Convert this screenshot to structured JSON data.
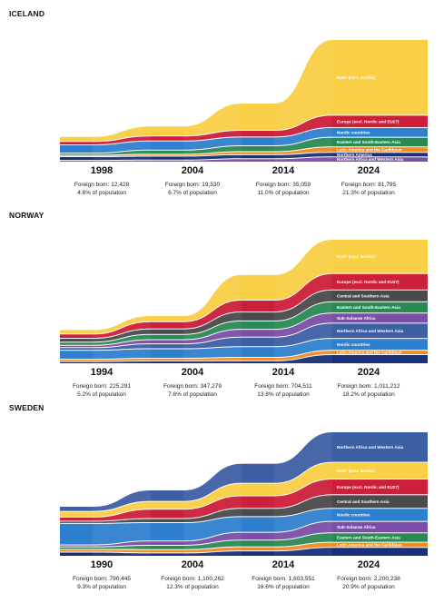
{
  "chart_data": [
    {
      "type": "sankey",
      "country": "ICELAND",
      "years": [
        {
          "year": "1998",
          "foreign_born_text": "Foreign born: 12,428",
          "share_text": "4.6% of population",
          "foreign_born": 12428,
          "share_pct": 4.6
        },
        {
          "year": "2004",
          "foreign_born_text": "Foreign born: 19,530",
          "share_text": "6.7% of population",
          "foreign_born": 19530,
          "share_pct": 6.7
        },
        {
          "year": "2014",
          "foreign_born_text": "Foreign born: 35,059",
          "share_text": "11.0% of population",
          "foreign_born": 35059,
          "share_pct": 11.0
        },
        {
          "year": "2024",
          "foreign_born_text": "Foreign born: 81,795",
          "share_text": "21.3% of population",
          "foreign_born": 81795,
          "share_pct": 21.3
        }
      ],
      "series": [
        {
          "name": "EU27 (excl. Nordic)",
          "color": "#f9cf45",
          "values": [
            2500,
            5500,
            16000,
            45500
          ]
        },
        {
          "name": "Europe (excl. Nordic and EU27)",
          "color": "#cc1f3a",
          "values": [
            1500,
            2500,
            3500,
            7000
          ]
        },
        {
          "name": "Nordic countries",
          "color": "#2f7fcf",
          "values": [
            4500,
            5000,
            4800,
            5300
          ]
        },
        {
          "name": "Eastern and South-Eastern Asia",
          "color": "#2a8a55",
          "values": [
            700,
            2000,
            3000,
            5300
          ]
        },
        {
          "name": "Latin America and the Caribbean",
          "color": "#f28a22",
          "values": [
            300,
            600,
            1300,
            2800
          ]
        },
        {
          "name": "Northern America",
          "color": "#182f7a",
          "values": [
            1700,
            1800,
            1900,
            2200
          ]
        },
        {
          "name": "Northern Africa and Western Asia",
          "color": "#7b4fa8",
          "values": [
            500,
            700,
            1500,
            2600
          ]
        }
      ]
    },
    {
      "type": "sankey",
      "country": "NORWAY",
      "years": [
        {
          "year": "1994",
          "foreign_born_text": "Foreign born: 225,291",
          "share_text": "5.2% of population",
          "foreign_born": 225291,
          "share_pct": 5.2
        },
        {
          "year": "2004",
          "foreign_born_text": "Foreign born: 347,279",
          "share_text": "7.6% of population",
          "foreign_born": 347279,
          "share_pct": 7.6
        },
        {
          "year": "2014",
          "foreign_born_text": "Foreign born: 704,511",
          "share_text": "13.8% of population",
          "foreign_born": 704511,
          "share_pct": 13.8
        },
        {
          "year": "2024",
          "foreign_born_text": "Foreign born: 1,011,212",
          "share_text": "18.2% of population",
          "foreign_born": 1011212,
          "share_pct": 18.2
        }
      ],
      "series": [
        {
          "name": "EU27 (excl. Nordic)",
          "color": "#f9cf45",
          "values": [
            30000,
            45000,
            215000,
            290000
          ]
        },
        {
          "name": "Europe (excl. Nordic and EU27)",
          "color": "#cc1f3a",
          "values": [
            30000,
            55000,
            95000,
            135000
          ]
        },
        {
          "name": "Central and Southern Asia",
          "color": "#4a4a4a",
          "values": [
            25000,
            40000,
            70000,
            95000
          ]
        },
        {
          "name": "Eastern and South-Eastern Asia",
          "color": "#2a8a55",
          "values": [
            20000,
            38000,
            65000,
            90000
          ]
        },
        {
          "name": "Sub-Saharan Africa",
          "color": "#7b4fa8",
          "values": [
            12000,
            28000,
            60000,
            80000
          ]
        },
        {
          "name": "Northern Africa and Western Asia",
          "color": "#3d5fa3",
          "values": [
            15000,
            35000,
            75000,
            125000
          ]
        },
        {
          "name": "Nordic countries",
          "color": "#2f7fcf",
          "values": [
            70000,
            75000,
            85000,
            95000
          ]
        },
        {
          "name": "Latin America and the Caribbean",
          "color": "#f28a22",
          "values": [
            12000,
            15000,
            22000,
            30000
          ]
        },
        {
          "name": "",
          "color": "#182f7a",
          "values": [
            11291,
            16279,
            17511,
            71212
          ]
        }
      ]
    },
    {
      "type": "sankey",
      "country": "SWEDEN",
      "years": [
        {
          "year": "1990",
          "foreign_born_text": "Foreign born: 790,445",
          "share_text": "9.3% of population",
          "foreign_born": 790445,
          "share_pct": 9.3
        },
        {
          "year": "2004",
          "foreign_born_text": "Foreign born: 1,100,262",
          "share_text": "12.3% of population",
          "foreign_born": 1100262,
          "share_pct": 12.3
        },
        {
          "year": "2014",
          "foreign_born_text": "Foreign born: 1,603,551",
          "share_text": "16.6% of population",
          "foreign_born": 1603551,
          "share_pct": 16.6
        },
        {
          "year": "2024",
          "foreign_born_text": "Foreign born: 2,200,238",
          "share_text": "20.9% of population",
          "foreign_born": 2200238,
          "share_pct": 20.9
        }
      ],
      "series": [
        {
          "name": "Northern Africa and Western Asia",
          "color": "#3d5fa3",
          "values": [
            80000,
            200000,
            360000,
            560000
          ]
        },
        {
          "name": "EU27 (excl. Nordic)",
          "color": "#f9cf45",
          "values": [
            90000,
            130000,
            220000,
            300000
          ]
        },
        {
          "name": "Europe (excl. Nordic and EU27)",
          "color": "#cc1f3a",
          "values": [
            60000,
            160000,
            220000,
            280000
          ]
        },
        {
          "name": "Central and Southern Asia",
          "color": "#4a4a4a",
          "values": [
            25000,
            60000,
            140000,
            240000
          ]
        },
        {
          "name": "Nordic countries",
          "color": "#2f7fcf",
          "values": [
            390000,
            330000,
            280000,
            230000
          ]
        },
        {
          "name": "Sub-Saharan Africa",
          "color": "#7b4fa8",
          "values": [
            20000,
            65000,
            130000,
            200000
          ]
        },
        {
          "name": "Eastern and South-Eastern Asia",
          "color": "#2a8a55",
          "values": [
            30000,
            65000,
            110000,
            160000
          ]
        },
        {
          "name": "Latin America and the Caribbean",
          "color": "#f28a22",
          "values": [
            35000,
            45000,
            60000,
            80000
          ]
        },
        {
          "name": "",
          "color": "#182f7a",
          "values": [
            60445,
            45262,
            83551,
            150238
          ]
        }
      ]
    }
  ]
}
